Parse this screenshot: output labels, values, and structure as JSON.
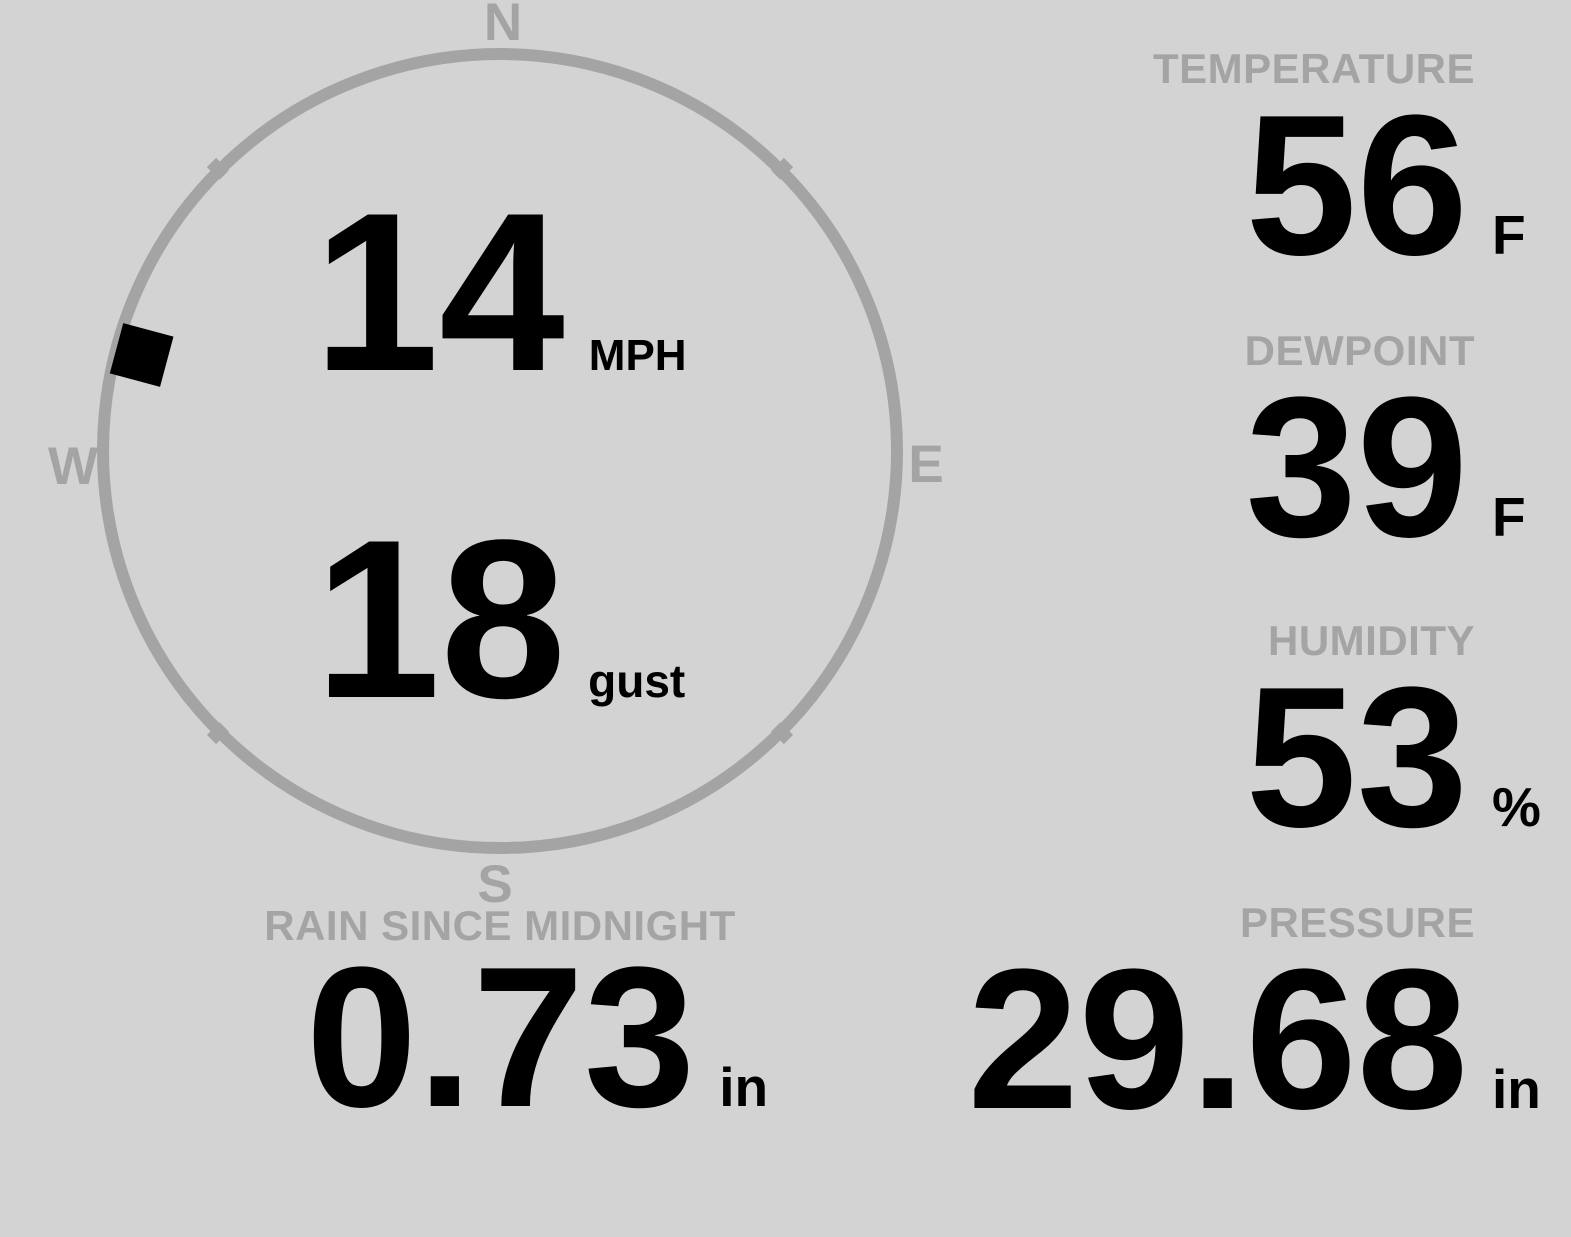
{
  "theme": {
    "background": "#d3d3d3",
    "muted": "#a4a4a4",
    "foreground": "#000000"
  },
  "wind": {
    "speed_value": "14",
    "speed_unit": "MPH",
    "gust_value": "18",
    "gust_unit": "gust",
    "direction_degrees": 285,
    "compass_labels": {
      "north": "N",
      "east": "E",
      "south": "S",
      "west": "W"
    }
  },
  "metrics": [
    {
      "id": "temperature",
      "label": "TEMPERATURE",
      "value": "56",
      "unit": "F"
    },
    {
      "id": "dewpoint",
      "label": "DEWPOINT",
      "value": "39",
      "unit": "F"
    },
    {
      "id": "humidity",
      "label": "HUMIDITY",
      "value": "53",
      "unit": "%"
    },
    {
      "id": "pressure",
      "label": "PRESSURE",
      "value": "29.68",
      "unit": "in"
    }
  ],
  "rain": {
    "label": "RAIN SINCE MIDNIGHT",
    "value": "0.73",
    "unit": "in"
  }
}
